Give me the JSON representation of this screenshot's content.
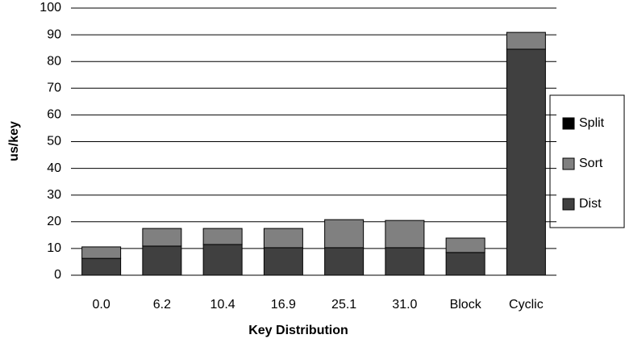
{
  "chart_data": {
    "type": "stacked_bar",
    "y_label": "us/key",
    "x_label": "Key Distribution",
    "categories": [
      "0.0",
      "6.2",
      "10.4",
      "16.9",
      "25.1",
      "31.0",
      "Block",
      "Cyclic"
    ],
    "series": [
      {
        "name": "Dist",
        "color": "#404040",
        "values": [
          6.3,
          10.9,
          11.5,
          10.3,
          10.3,
          10.3,
          8.5,
          84.6
        ]
      },
      {
        "name": "Sort",
        "color": "#808080",
        "values": [
          4.3,
          6.6,
          6.0,
          7.2,
          10.5,
          10.2,
          5.4,
          6.3
        ]
      },
      {
        "name": "Split",
        "color": "#000000",
        "values": [
          0,
          0,
          0,
          0,
          0,
          0,
          0,
          0
        ]
      }
    ],
    "ylim": [
      0,
      100
    ],
    "yticks": [
      0,
      10,
      20,
      30,
      40,
      50,
      60,
      70,
      80,
      90,
      100
    ],
    "grid": true,
    "legend": "right"
  }
}
